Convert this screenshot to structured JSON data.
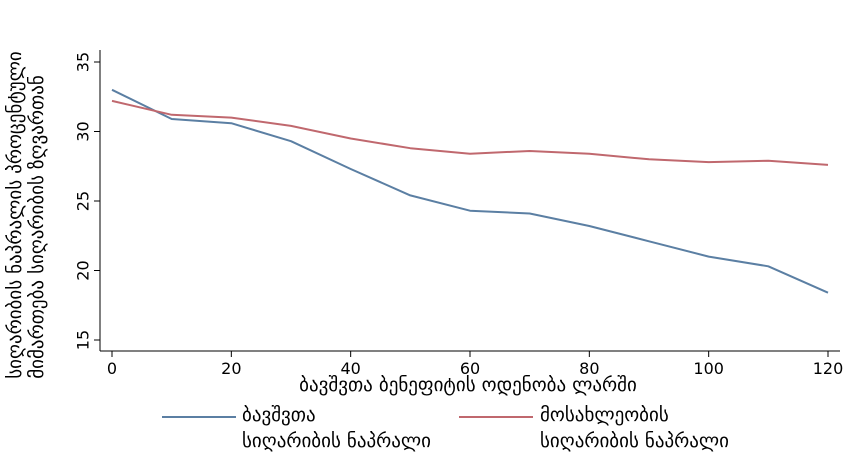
{
  "chart_data": {
    "type": "line",
    "xlabel": "ბავშვთა ბენეფიტის ოდენობა ლარში",
    "ylabel": [
      "სიღარიბის ნაპრალის პროცენტული",
      "მიმართება სიღარიბის ზღვართან"
    ],
    "x": [
      0,
      10,
      20,
      30,
      40,
      50,
      60,
      70,
      80,
      90,
      100,
      110,
      120
    ],
    "xlim": [
      0,
      120
    ],
    "ylim": [
      15,
      35
    ],
    "xticks": [
      "0",
      "20",
      "40",
      "60",
      "80",
      "100",
      "120"
    ],
    "yticks": [
      "15",
      "20",
      "25",
      "30",
      "35"
    ],
    "grid": false,
    "legend_position": "bottom",
    "series": [
      {
        "name": [
          "ბავშვთა",
          "სიღარიბის ნაპრალი"
        ],
        "color": "#5b7fa3",
        "values": [
          33.0,
          30.9,
          30.6,
          29.3,
          27.3,
          25.4,
          24.3,
          24.1,
          23.2,
          22.1,
          21.0,
          20.3,
          18.4
        ]
      },
      {
        "name": [
          "მოსახლეობის",
          "სიღარიბის ნაპრალი"
        ],
        "color": "#c0686e",
        "values": [
          32.2,
          31.2,
          31.0,
          30.4,
          29.5,
          28.8,
          28.4,
          28.6,
          28.4,
          28.0,
          27.8,
          27.9,
          27.6
        ]
      }
    ]
  }
}
